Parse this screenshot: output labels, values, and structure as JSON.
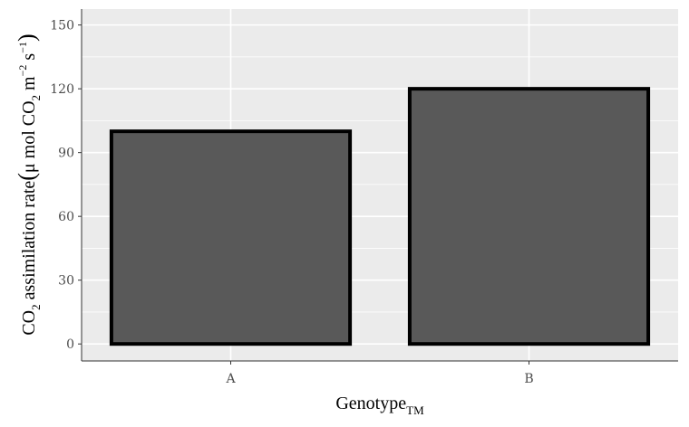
{
  "chart_data": {
    "type": "bar",
    "categories": [
      "A",
      "B"
    ],
    "values": [
      100,
      120
    ],
    "ylim": [
      -8,
      157.5
    ],
    "y_ticks": [
      0,
      30,
      60,
      90,
      120,
      150
    ],
    "y_tick_labels": [
      "0",
      "30",
      "60",
      "90",
      "120",
      "150"
    ],
    "xlabel": {
      "main": "Genotype",
      "subscript": "TM"
    },
    "ylabel": {
      "p1": "CO",
      "s1": "2",
      "p2": " assimilation rate",
      "paren_open": "(",
      "p3": "μ mol CO",
      "s2": "2",
      "p4": " m",
      "e1": "−2",
      "p5": " s",
      "e2": "−1",
      "paren_close": ")"
    },
    "grid": true,
    "legend": "none",
    "colors": {
      "panel": "#ebebeb",
      "grid": "#ffffff",
      "bar_fill": "#595959",
      "bar_stroke": "#000000"
    }
  }
}
